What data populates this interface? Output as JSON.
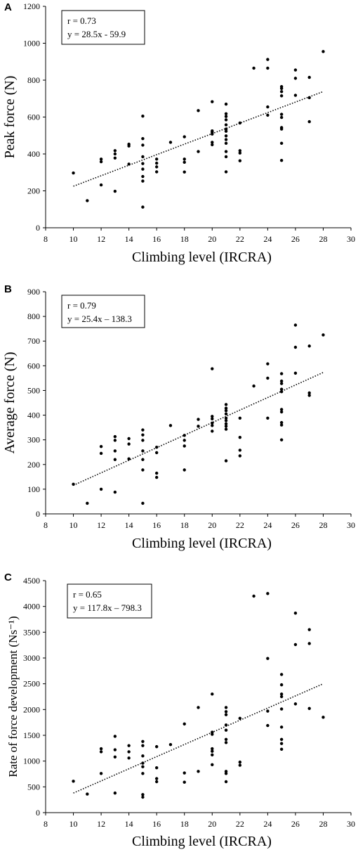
{
  "chart_data": [
    {
      "panel_label": "A",
      "type": "scatter",
      "title": "",
      "xlabel": "Climbing level (IRCRA)",
      "ylabel": "Peak force (N)",
      "xlim": [
        8,
        30
      ],
      "ylim": [
        0,
        1200
      ],
      "xticks": [
        8,
        10,
        12,
        14,
        16,
        18,
        20,
        22,
        24,
        26,
        28,
        30
      ],
      "yticks": [
        0,
        200,
        400,
        600,
        800,
        1000,
        1200
      ],
      "annotation": {
        "r": "r = 0.73",
        "eq": "y = 28.5x - 59.9"
      },
      "trendline": {
        "slope": 28.5,
        "intercept": -59.9,
        "x_range": [
          10,
          28
        ],
        "style": "dotted"
      },
      "grid": false,
      "points": [
        [
          10,
          297
        ],
        [
          11,
          147
        ],
        [
          12,
          232
        ],
        [
          12,
          358
        ],
        [
          12,
          372
        ],
        [
          13,
          198
        ],
        [
          13,
          378
        ],
        [
          13,
          400
        ],
        [
          13,
          418
        ],
        [
          14,
          345
        ],
        [
          14,
          443
        ],
        [
          14,
          453
        ],
        [
          15,
          112
        ],
        [
          15,
          253
        ],
        [
          15,
          278
        ],
        [
          15,
          318
        ],
        [
          15,
          348
        ],
        [
          15,
          385
        ],
        [
          15,
          448
        ],
        [
          15,
          483
        ],
        [
          15,
          605
        ],
        [
          16,
          303
        ],
        [
          16,
          330
        ],
        [
          16,
          350
        ],
        [
          16,
          372
        ],
        [
          17,
          463
        ],
        [
          18,
          302
        ],
        [
          18,
          355
        ],
        [
          18,
          372
        ],
        [
          18,
          493
        ],
        [
          19,
          413
        ],
        [
          19,
          635
        ],
        [
          20,
          450
        ],
        [
          20,
          463
        ],
        [
          20,
          508
        ],
        [
          20,
          518
        ],
        [
          20,
          525
        ],
        [
          20,
          683
        ],
        [
          21,
          303
        ],
        [
          21,
          385
        ],
        [
          21,
          413
        ],
        [
          21,
          458
        ],
        [
          21,
          478
        ],
        [
          21,
          498
        ],
        [
          21,
          523
        ],
        [
          21,
          535
        ],
        [
          21,
          558
        ],
        [
          21,
          585
        ],
        [
          21,
          603
        ],
        [
          21,
          618
        ],
        [
          21,
          670
        ],
        [
          22,
          363
        ],
        [
          22,
          405
        ],
        [
          22,
          418
        ],
        [
          22,
          568
        ],
        [
          23,
          865
        ],
        [
          24,
          610
        ],
        [
          24,
          655
        ],
        [
          24,
          865
        ],
        [
          24,
          912
        ],
        [
          25,
          365
        ],
        [
          25,
          458
        ],
        [
          25,
          535
        ],
        [
          25,
          543
        ],
        [
          25,
          598
        ],
        [
          25,
          615
        ],
        [
          25,
          715
        ],
        [
          25,
          738
        ],
        [
          25,
          755
        ],
        [
          25,
          765
        ],
        [
          26,
          718
        ],
        [
          26,
          810
        ],
        [
          26,
          855
        ],
        [
          27,
          575
        ],
        [
          27,
          705
        ],
        [
          27,
          815
        ],
        [
          28,
          955
        ]
      ]
    },
    {
      "panel_label": "B",
      "type": "scatter",
      "title": "",
      "xlabel": "Climbing level (IRCRA)",
      "ylabel": "Average force (N)",
      "xlim": [
        8,
        30
      ],
      "ylim": [
        0,
        900
      ],
      "xticks": [
        8,
        10,
        12,
        14,
        16,
        18,
        20,
        22,
        24,
        26,
        28,
        30
      ],
      "yticks": [
        0,
        100,
        200,
        300,
        400,
        500,
        600,
        700,
        800,
        900
      ],
      "annotation": {
        "r": "r = 0.79",
        "eq": "y = 25.4x – 138.3"
      },
      "trendline": {
        "slope": 25.4,
        "intercept": -138.3,
        "x_range": [
          10,
          28
        ],
        "style": "dotted"
      },
      "grid": false,
      "points": [
        [
          10,
          120
        ],
        [
          11,
          43
        ],
        [
          12,
          100
        ],
        [
          12,
          245
        ],
        [
          12,
          273
        ],
        [
          13,
          88
        ],
        [
          13,
          220
        ],
        [
          13,
          255
        ],
        [
          13,
          298
        ],
        [
          13,
          313
        ],
        [
          14,
          223
        ],
        [
          14,
          283
        ],
        [
          14,
          305
        ],
        [
          15,
          43
        ],
        [
          15,
          178
        ],
        [
          15,
          220
        ],
        [
          15,
          255
        ],
        [
          15,
          298
        ],
        [
          15,
          320
        ],
        [
          15,
          340
        ],
        [
          16,
          148
        ],
        [
          16,
          165
        ],
        [
          16,
          248
        ],
        [
          16,
          270
        ],
        [
          17,
          358
        ],
        [
          18,
          178
        ],
        [
          18,
          275
        ],
        [
          18,
          298
        ],
        [
          18,
          318
        ],
        [
          19,
          355
        ],
        [
          19,
          383
        ],
        [
          20,
          335
        ],
        [
          20,
          358
        ],
        [
          20,
          368
        ],
        [
          20,
          385
        ],
        [
          20,
          395
        ],
        [
          20,
          588
        ],
        [
          21,
          215
        ],
        [
          21,
          343
        ],
        [
          21,
          355
        ],
        [
          21,
          365
        ],
        [
          21,
          378
        ],
        [
          21,
          388
        ],
        [
          21,
          405
        ],
        [
          21,
          418
        ],
        [
          21,
          428
        ],
        [
          21,
          443
        ],
        [
          22,
          235
        ],
        [
          22,
          258
        ],
        [
          22,
          310
        ],
        [
          22,
          388
        ],
        [
          23,
          518
        ],
        [
          24,
          388
        ],
        [
          24,
          550
        ],
        [
          24,
          608
        ],
        [
          25,
          300
        ],
        [
          25,
          360
        ],
        [
          25,
          370
        ],
        [
          25,
          413
        ],
        [
          25,
          423
        ],
        [
          25,
          495
        ],
        [
          25,
          505
        ],
        [
          25,
          528
        ],
        [
          25,
          538
        ],
        [
          25,
          568
        ],
        [
          26,
          570
        ],
        [
          26,
          675
        ],
        [
          26,
          765
        ],
        [
          27,
          480
        ],
        [
          27,
          490
        ],
        [
          27,
          680
        ],
        [
          28,
          725
        ]
      ]
    },
    {
      "panel_label": "C",
      "type": "scatter",
      "title": "",
      "xlabel": "Climbing level (IRCRA)",
      "ylabel": "Rate of force development (Ns⁻¹)",
      "xlim": [
        8,
        30
      ],
      "ylim": [
        0,
        4500
      ],
      "xticks": [
        8,
        10,
        12,
        14,
        16,
        18,
        20,
        22,
        24,
        26,
        28,
        30
      ],
      "yticks": [
        0,
        500,
        1000,
        1500,
        2000,
        2500,
        3000,
        3500,
        4000,
        4500
      ],
      "annotation": {
        "r": "r = 0.65",
        "eq": "y = 117.8x – 798.3"
      },
      "trendline": {
        "slope": 117.8,
        "intercept": -798.3,
        "x_range": [
          10,
          28
        ],
        "style": "dotted"
      },
      "grid": false,
      "points": [
        [
          10,
          610
        ],
        [
          11,
          360
        ],
        [
          12,
          760
        ],
        [
          12,
          1180
        ],
        [
          12,
          1240
        ],
        [
          13,
          380
        ],
        [
          13,
          1080
        ],
        [
          13,
          1220
        ],
        [
          13,
          1480
        ],
        [
          14,
          1060
        ],
        [
          14,
          1180
        ],
        [
          14,
          1300
        ],
        [
          15,
          300
        ],
        [
          15,
          350
        ],
        [
          15,
          760
        ],
        [
          15,
          890
        ],
        [
          15,
          960
        ],
        [
          15,
          1100
        ],
        [
          15,
          1300
        ],
        [
          15,
          1380
        ],
        [
          16,
          600
        ],
        [
          16,
          660
        ],
        [
          16,
          870
        ],
        [
          16,
          1280
        ],
        [
          17,
          1320
        ],
        [
          18,
          590
        ],
        [
          18,
          770
        ],
        [
          18,
          1720
        ],
        [
          19,
          800
        ],
        [
          19,
          2040
        ],
        [
          20,
          930
        ],
        [
          20,
          1120
        ],
        [
          20,
          1190
        ],
        [
          20,
          1240
        ],
        [
          20,
          1520
        ],
        [
          20,
          1560
        ],
        [
          20,
          2300
        ],
        [
          21,
          600
        ],
        [
          21,
          760
        ],
        [
          21,
          800
        ],
        [
          21,
          1360
        ],
        [
          21,
          1420
        ],
        [
          21,
          1600
        ],
        [
          21,
          1700
        ],
        [
          21,
          1900
        ],
        [
          21,
          1960
        ],
        [
          21,
          2040
        ],
        [
          22,
          920
        ],
        [
          22,
          980
        ],
        [
          22,
          1830
        ],
        [
          23,
          4200
        ],
        [
          24,
          1690
        ],
        [
          24,
          1970
        ],
        [
          24,
          2990
        ],
        [
          24,
          4250
        ],
        [
          25,
          1230
        ],
        [
          25,
          1340
        ],
        [
          25,
          1420
        ],
        [
          25,
          1660
        ],
        [
          25,
          2010
        ],
        [
          25,
          2250
        ],
        [
          25,
          2300
        ],
        [
          25,
          2480
        ],
        [
          25,
          2680
        ],
        [
          26,
          2110
        ],
        [
          26,
          3260
        ],
        [
          26,
          3870
        ],
        [
          27,
          2020
        ],
        [
          27,
          3280
        ],
        [
          27,
          3550
        ],
        [
          28,
          1850
        ]
      ]
    }
  ]
}
